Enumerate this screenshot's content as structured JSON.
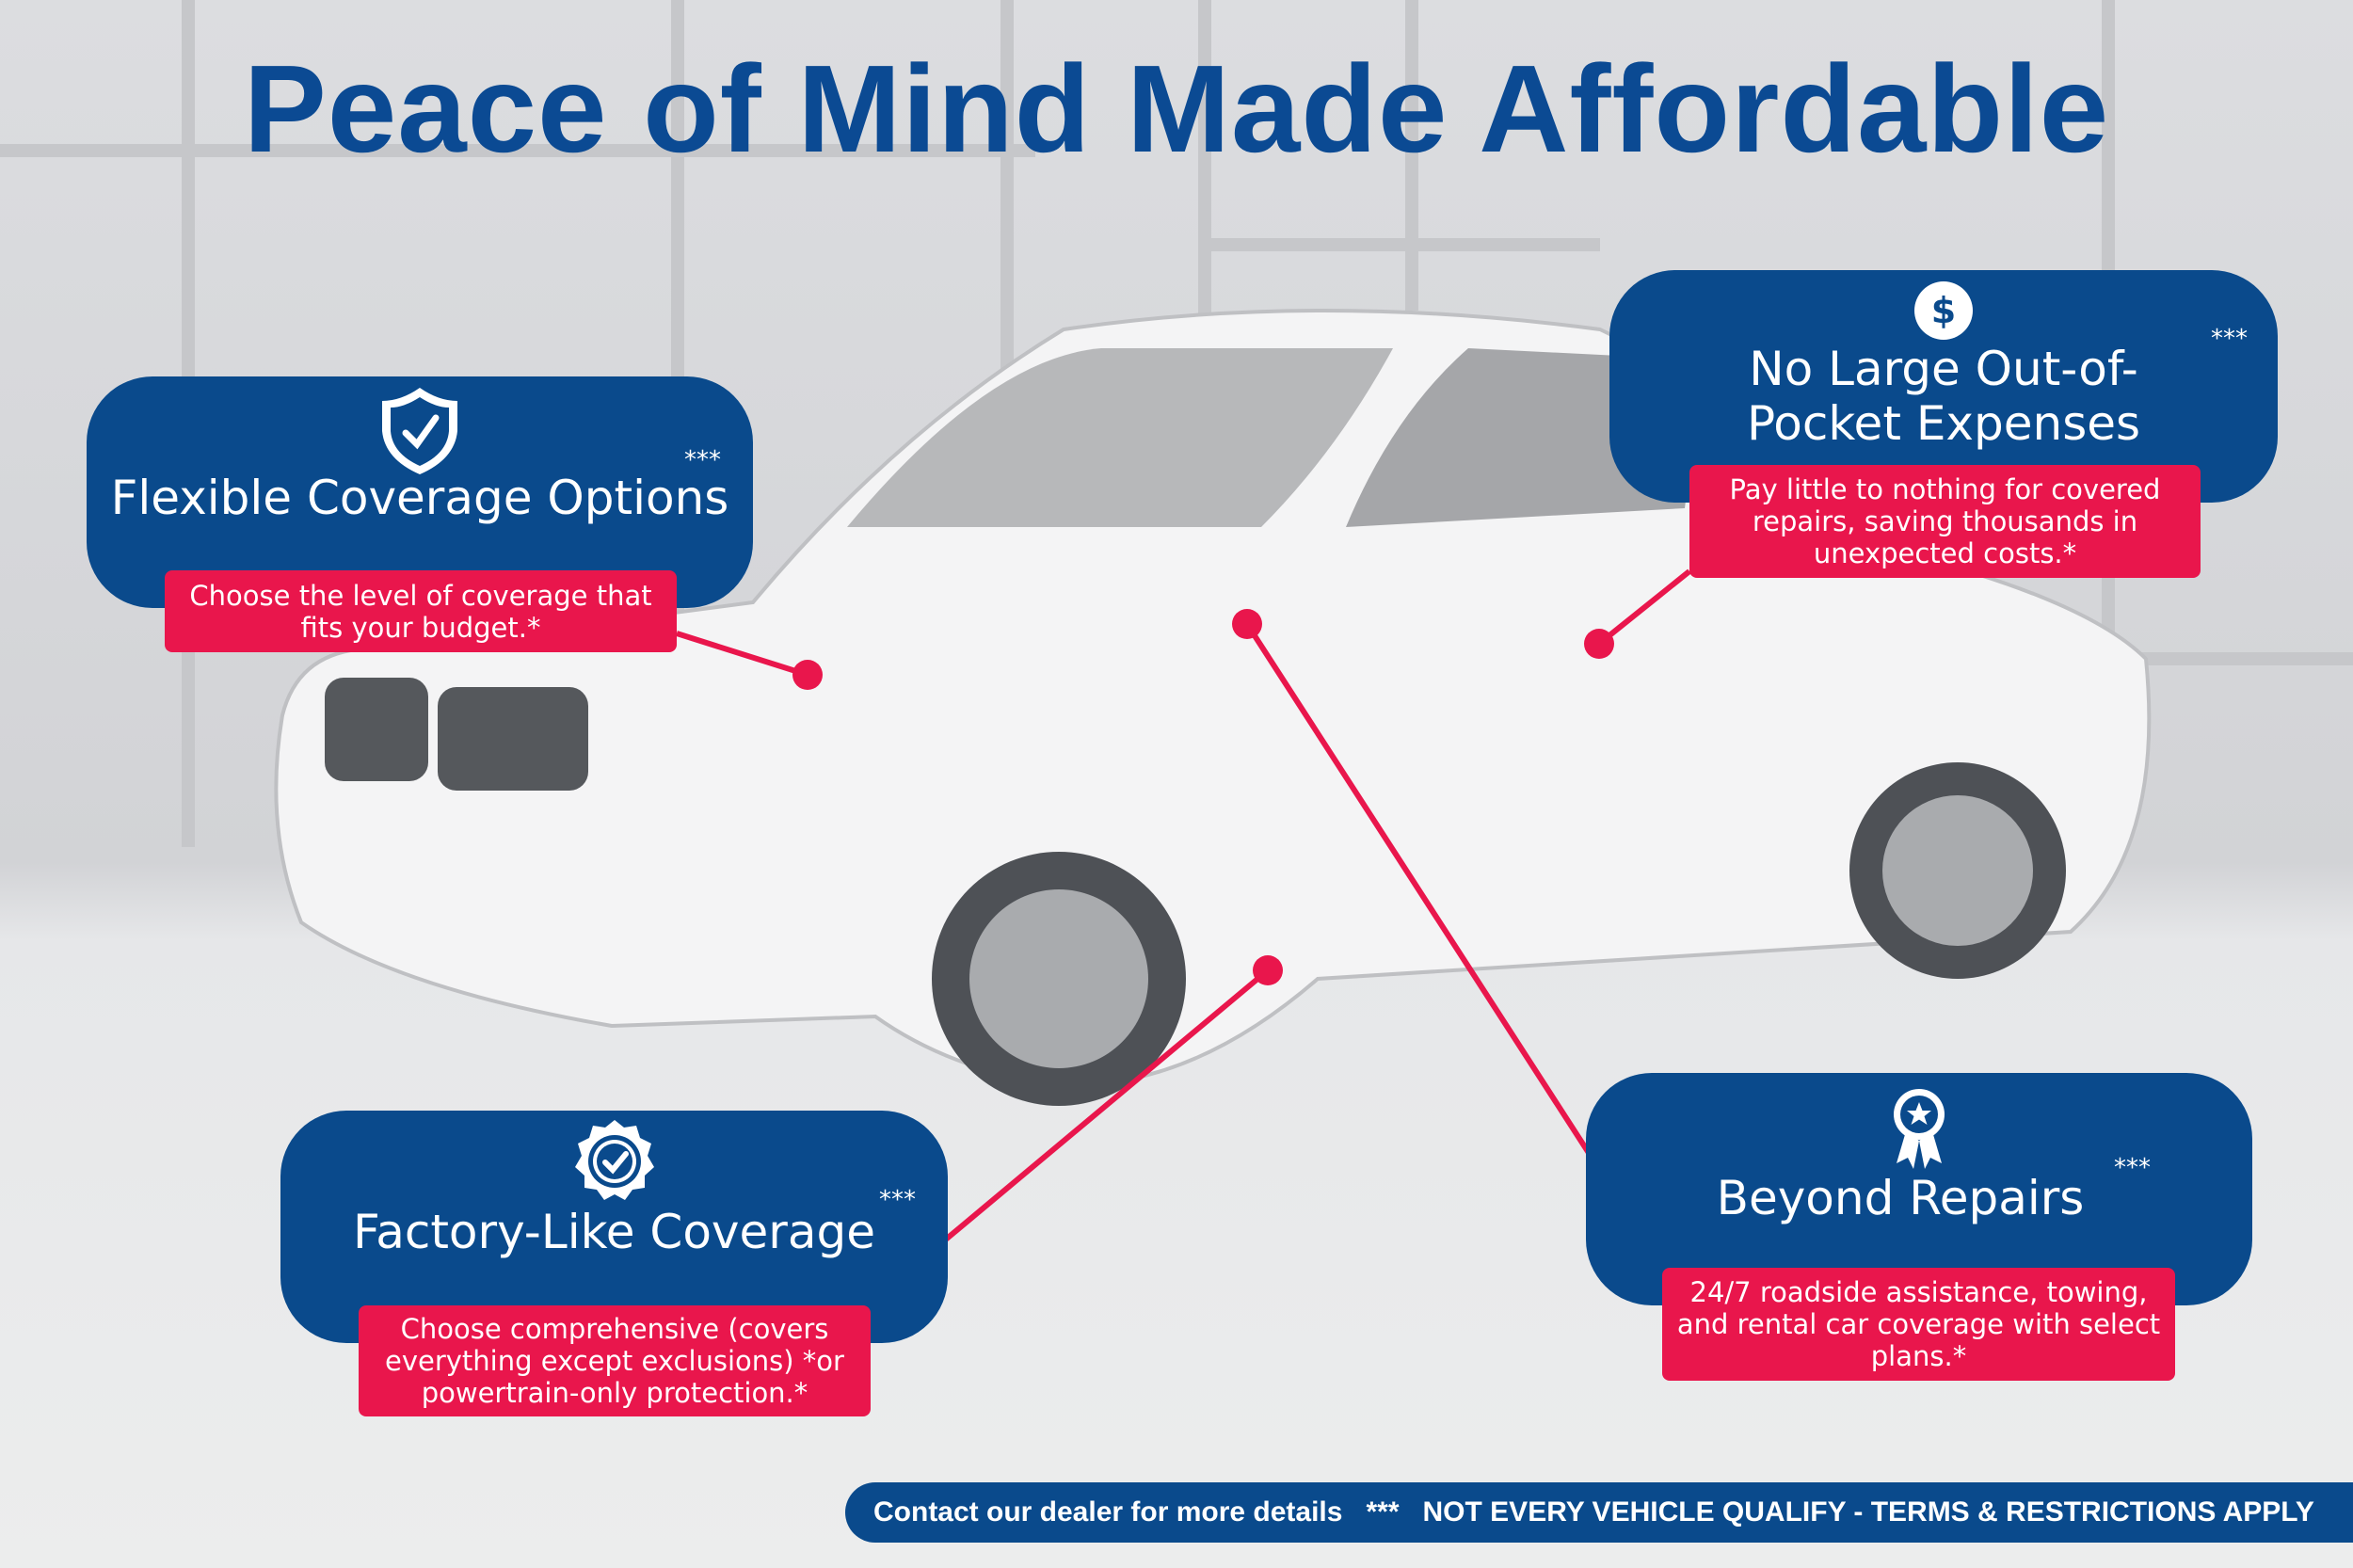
{
  "title": "Peace of Mind Made Affordable",
  "colors": {
    "brand_blue": "#0a4a8c",
    "accent_red": "#e9164c",
    "title_blue": "#0b4a93"
  },
  "cards": [
    {
      "icon": "shield-check-icon",
      "heading": "Flexible Coverage Options",
      "stars": "***",
      "note": "Choose the level of coverage that fits your budget.*"
    },
    {
      "icon": "dollar-icon",
      "heading": "No Large Out-of-Pocket Expenses",
      "stars": "***",
      "note": "Pay little to nothing for covered repairs, saving thousands in unexpected costs.*"
    },
    {
      "icon": "badge-check-icon",
      "heading": "Factory-Like Coverage",
      "stars": "***",
      "note": "Choose comprehensive (covers everything except exclusions) *or powertrain-only protection.*"
    },
    {
      "icon": "award-ribbon-icon",
      "heading": "Beyond Repairs",
      "stars": "***",
      "note": "24/7 roadside assistance, towing, and rental car coverage with select plans.*"
    }
  ],
  "footer": {
    "contact": "Contact our dealer for more details",
    "separator": "***",
    "disclaimer": "NOT EVERY VEHICLE QUALIFY - TERMS & RESTRICTIONS APPLY"
  }
}
